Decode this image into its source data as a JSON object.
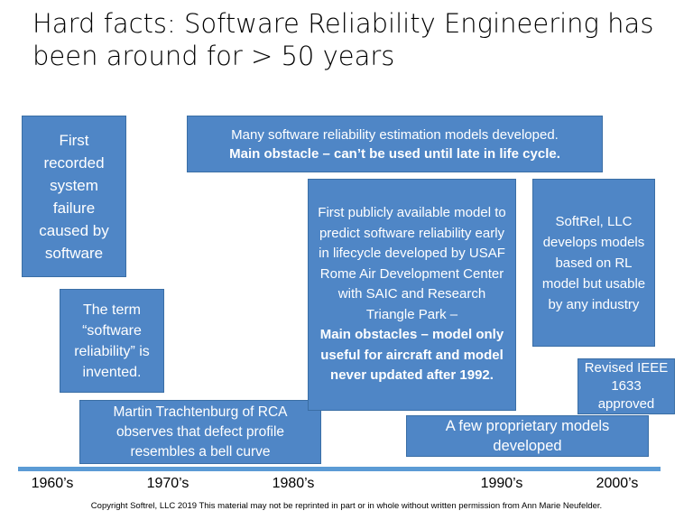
{
  "header": {
    "title": "Hard facts: Software Reliability Engineering has been around for > 50 years"
  },
  "boxes": [
    {
      "text": "First recorded system failure caused by software"
    },
    {
      "text": "Many software reliability estimation models developed.",
      "bold_text": "Main obstacle – can’t be used until late in life cycle."
    },
    {
      "text": "The term “software reliability” is invented."
    },
    {
      "text": "Martin Trachtenburg of RCA observes that defect profile resembles a bell curve"
    },
    {
      "text": "First publicly available model to predict software reliability early in lifecycle developed by USAF Rome Air Development Center with SAIC and Research Triangle Park –",
      "bold_text": "Main obstacles – model only useful for aircraft and model never updated after 1992."
    },
    {
      "text": "SoftRel, LLC develops models based on RL model but usable by any industry"
    },
    {
      "text": "Revised IEEE 1633 approved"
    },
    {
      "text": "A few proprietary models developed"
    }
  ],
  "timeline": {
    "labels": [
      "1960’s",
      "1970’s",
      "1980’s",
      "1990’s",
      "2000’s"
    ]
  },
  "footer": {
    "copyright": "Copyright Softrel, LLC 2019 This material may not be reprinted in part or in whole without written permission from Ann Marie Neufelder."
  }
}
